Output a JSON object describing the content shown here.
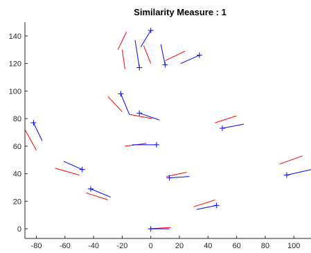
{
  "chart_data": {
    "type": "line",
    "title": "Similarity Measure : 1",
    "xlabel": "",
    "ylabel": "",
    "xlim": [
      -88,
      112
    ],
    "ylim": [
      -7,
      150
    ],
    "xticks": [
      -80,
      -60,
      -40,
      -20,
      0,
      20,
      40,
      60,
      80,
      100
    ],
    "yticks": [
      0,
      20,
      40,
      60,
      80,
      100,
      120,
      140
    ],
    "grid": false,
    "legend": "none",
    "colors": {
      "red": "#ff0000",
      "blue": "#0000ff",
      "axis": "#262626"
    },
    "series": [
      {
        "color": "red",
        "segments": [
          [
            [
              -17,
              143
            ],
            [
              -23,
              130
            ]
          ],
          [
            [
              -20,
              130
            ],
            [
              -18,
              116
            ]
          ],
          [
            [
              -5,
              133
            ],
            [
              0,
              120
            ]
          ],
          [
            [
              10,
              122
            ],
            [
              24,
              129
            ]
          ],
          [
            [
              -30,
              96
            ],
            [
              -20,
              85
            ]
          ],
          [
            [
              -15,
              83
            ],
            [
              1,
              80
            ]
          ],
          [
            [
              -88,
              72
            ],
            [
              -80,
              57
            ]
          ],
          [
            [
              45,
              77
            ],
            [
              60,
              82
            ]
          ],
          [
            [
              -18,
              60
            ],
            [
              -3,
              62
            ]
          ],
          [
            [
              -67,
              44
            ],
            [
              -50,
              39
            ]
          ],
          [
            [
              -45,
              26
            ],
            [
              -30,
              21
            ]
          ],
          [
            [
              90,
              47
            ],
            [
              106,
              53
            ]
          ],
          [
            [
              11,
              38
            ],
            [
              25,
              41
            ]
          ],
          [
            [
              30,
              16
            ],
            [
              45,
              21
            ]
          ],
          [
            [
              -2,
              0
            ],
            [
              14,
              1
            ]
          ]
        ]
      },
      {
        "color": "blue",
        "segments": [
          [
            [
              -11,
              137
            ],
            [
              -8,
              117
            ]
          ],
          [
            [
              -7,
              132
            ],
            [
              0,
              144
            ]
          ],
          [
            [
              7,
              134
            ],
            [
              10,
              119
            ]
          ],
          [
            [
              21,
              120
            ],
            [
              34,
              126
            ]
          ],
          [
            [
              -21,
              98
            ],
            [
              -15,
              83
            ]
          ],
          [
            [
              -8,
              84
            ],
            [
              6,
              79
            ]
          ],
          [
            [
              -82,
              77
            ],
            [
              -76,
              64
            ]
          ],
          [
            [
              50,
              73
            ],
            [
              65,
              76
            ]
          ],
          [
            [
              -13,
              61
            ],
            [
              4,
              61
            ]
          ],
          [
            [
              -61,
              49
            ],
            [
              -48,
              43
            ]
          ],
          [
            [
              -42,
              29
            ],
            [
              -28,
              23
            ]
          ],
          [
            [
              95,
              39
            ],
            [
              112,
              43
            ]
          ],
          [
            [
              13,
              37
            ],
            [
              27,
              38
            ]
          ],
          [
            [
              32,
              14
            ],
            [
              46,
              17
            ]
          ],
          [
            [
              0,
              0
            ],
            [
              13,
              0
            ]
          ]
        ]
      }
    ],
    "markers": {
      "symbol": "plus",
      "color": "blue",
      "points": [
        [
          0,
          144
        ],
        [
          -8,
          117
        ],
        [
          10,
          119
        ],
        [
          34,
          126
        ],
        [
          -21,
          98
        ],
        [
          -8,
          84
        ],
        [
          -82,
          77
        ],
        [
          50,
          73
        ],
        [
          4,
          61
        ],
        [
          -48,
          43
        ],
        [
          -42,
          29
        ],
        [
          95,
          39
        ],
        [
          13,
          37
        ],
        [
          46,
          17
        ],
        [
          0,
          0
        ]
      ]
    }
  }
}
